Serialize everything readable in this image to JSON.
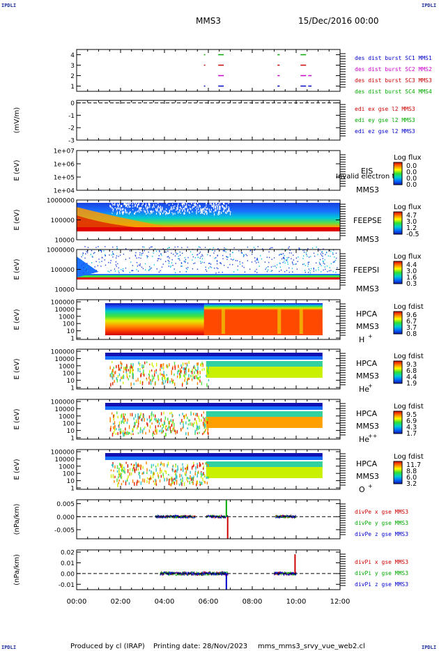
{
  "corner_label": "IPDLI",
  "header": {
    "mission": "MMS3",
    "date": "15/Dec/2016 00:00"
  },
  "footer": {
    "producer": "Produced by cl (IRAP)",
    "printing_date": "Printing date: 28/Nov/2023",
    "filename": "mms_mms3_srvy_vue_web2.cl"
  },
  "colors": {
    "blue": "#0000cc",
    "magenta": "#cc00cc",
    "red": "#cc0000",
    "green": "#00aa00",
    "saturated_red": "#e00000",
    "colorbar_stops": [
      "#1010b0",
      "#0070ff",
      "#00d0d0",
      "#30e030",
      "#ffff00",
      "#ff8000",
      "#e00000"
    ]
  },
  "chart_data": {
    "type": "multi-panel time series / spectrogram",
    "time_axis": {
      "tick_labels": [
        "00:00",
        "02:00",
        "04:00",
        "06:00",
        "08:00",
        "10:00",
        "12:00"
      ],
      "range_hours": [
        0,
        12
      ]
    },
    "panels": [
      {
        "id": "burst",
        "yticks": [
          "4",
          "3",
          "2",
          "1"
        ],
        "yrange": [
          0.5,
          4.5
        ],
        "legend": [
          {
            "text": "des dist burst SC1 MMS1",
            "color": "#0000cc"
          },
          {
            "text": "des dist burst SC2 MMS2",
            "color": "#cc00cc"
          },
          {
            "text": "des dist burst SC3 MMS3",
            "color": "#cc0000"
          },
          {
            "text": "des dist burst SC4 MMS4",
            "color": "#00aa00"
          }
        ],
        "burst_intervals_hours": [
          [
            5.8,
            5.86
          ],
          [
            6.45,
            6.7
          ],
          [
            9.15,
            9.25
          ],
          [
            10.2,
            10.45
          ],
          [
            10.55,
            10.7
          ]
        ]
      },
      {
        "id": "edi",
        "ylabel": "(mV/m)",
        "yticks": [
          "0",
          "-1",
          "-2",
          "-3"
        ],
        "yrange": [
          -3,
          0.2
        ],
        "dashed_level": 0,
        "legend": [
          {
            "text": "edi ex gse l2 MMS3",
            "color": "#cc0000"
          },
          {
            "text": "edi ey gse l2 MMS3",
            "color": "#00aa00"
          },
          {
            "text": "edi ez gse l2 MMS3",
            "color": "#0000cc"
          }
        ]
      },
      {
        "id": "eis",
        "ylabel": "E (eV)",
        "yticks": [
          "1e+07",
          "1e+06",
          "1e+05",
          "1e+04"
        ],
        "yrange_log10": [
          4,
          7
        ],
        "instrument": "EIS",
        "note": "Invalid electron to",
        "sc": "MMS3",
        "colorbar": {
          "title": "Log flux",
          "labels": [
            "0.0",
            "0.0",
            "0.0",
            "0.0"
          ]
        }
      },
      {
        "id": "feepse",
        "ylabel": "E (eV)",
        "yticks": [
          "1000000",
          "100000",
          "10000"
        ],
        "yrange_log10": [
          4,
          6
        ],
        "instrument": "FEEPSE",
        "sc": "MMS3",
        "colorbar": {
          "title": "Log flux",
          "labels": [
            "4.7",
            "3.0",
            "1.2",
            "-0.5"
          ]
        },
        "coverage_hours": [
          0,
          12
        ]
      },
      {
        "id": "feepsi",
        "ylabel": "E (eV)",
        "yticks": [
          "1000000",
          "100000",
          "10000"
        ],
        "yrange_log10": [
          4,
          6
        ],
        "instrument": "FEEPSI",
        "sc": "MMS3",
        "colorbar": {
          "title": "Log flux",
          "labels": [
            "4.4",
            "3.0",
            "1.6",
            "0.3"
          ]
        },
        "coverage_hours": [
          0,
          12
        ]
      },
      {
        "id": "hpca_h",
        "ylabel": "E (eV)",
        "yticks": [
          "100000",
          "10000",
          "1000",
          "100",
          "10",
          "1"
        ],
        "yrange_log10": [
          0,
          5
        ],
        "instrument": "HPCA",
        "sc": "MMS3",
        "species": "H",
        "species_charge": "+",
        "colorbar": {
          "title": "Log fdist",
          "labels": [
            "9.6",
            "6.7",
            "3.7",
            "0.8"
          ]
        },
        "coverage_hours": [
          1.3,
          11.2
        ]
      },
      {
        "id": "hpca_he1",
        "ylabel": "E (eV)",
        "yticks": [
          "100000",
          "10000",
          "1000",
          "100",
          "10",
          "1"
        ],
        "yrange_log10": [
          0,
          5
        ],
        "instrument": "HPCA",
        "sc": "MMS3",
        "species": "He",
        "species_charge": "+",
        "colorbar": {
          "title": "Log fdist",
          "labels": [
            "9.3",
            "6.8",
            "4.4",
            "1.9"
          ]
        },
        "coverage_hours": [
          1.3,
          11.2
        ]
      },
      {
        "id": "hpca_he2",
        "ylabel": "E (eV)",
        "yticks": [
          "100000",
          "10000",
          "1000",
          "100",
          "10",
          "1"
        ],
        "yrange_log10": [
          0,
          5
        ],
        "instrument": "HPCA",
        "sc": "MMS3",
        "species": "He",
        "species_charge": "++",
        "colorbar": {
          "title": "Log fdist",
          "labels": [
            "9.5",
            "6.9",
            "4.3",
            "1.7"
          ]
        },
        "coverage_hours": [
          1.3,
          11.2
        ]
      },
      {
        "id": "hpca_o",
        "ylabel": "E (eV)",
        "yticks": [
          "100000",
          "10000",
          "1000",
          "100",
          "10",
          "1"
        ],
        "yrange_log10": [
          0,
          5
        ],
        "instrument": "HPCA",
        "sc": "MMS3",
        "species": "O",
        "species_charge": "+",
        "colorbar": {
          "title": "Log fdist",
          "labels": [
            "11.7",
            "8.8",
            "6.0",
            "3.2"
          ]
        },
        "coverage_hours": [
          1.3,
          11.2
        ]
      },
      {
        "id": "divpe",
        "ylabel": "(nPa/km)",
        "yticks": [
          "0.005",
          "0.000",
          "-0.005"
        ],
        "ytick_values": [
          0.005,
          0.0,
          -0.005
        ],
        "yrange": [
          -0.0085,
          0.0065
        ],
        "dashed_level": 0,
        "legend": [
          {
            "text": "divPe x gse MMS3",
            "color": "#cc0000"
          },
          {
            "text": "divPe y gse MMS3",
            "color": "#00aa00"
          },
          {
            "text": "divPe z gse MMS3",
            "color": "#0000cc"
          }
        ],
        "data_intervals_hours": [
          [
            3.6,
            5.4
          ],
          [
            5.9,
            6.9
          ],
          [
            9.05,
            10.0
          ]
        ],
        "peaks": [
          {
            "t": 6.82,
            "value": 0.0063,
            "color": "#00aa00"
          },
          {
            "t": 6.88,
            "value": -0.0085,
            "color": "#cc0000"
          }
        ]
      },
      {
        "id": "divpi",
        "ylabel": "(nPa/km)",
        "yticks": [
          "0.02",
          "0.01",
          "0.00",
          "-0.01"
        ],
        "ytick_values": [
          0.02,
          0.01,
          0.0,
          -0.01
        ],
        "yrange": [
          -0.015,
          0.022
        ],
        "dashed_level": 0,
        "legend": [
          {
            "text": "divPi x gse MMS3",
            "color": "#cc0000"
          },
          {
            "text": "divPi y gse MMS3",
            "color": "#00aa00"
          },
          {
            "text": "divPi z gse MMS3",
            "color": "#0000cc"
          }
        ],
        "data_intervals_hours": [
          [
            3.8,
            6.9
          ],
          [
            9.0,
            10.0
          ]
        ],
        "peaks": [
          {
            "t": 6.82,
            "value": -0.015,
            "color": "#0000cc"
          },
          {
            "t": 9.95,
            "value": 0.018,
            "color": "#cc0000"
          }
        ]
      }
    ]
  }
}
